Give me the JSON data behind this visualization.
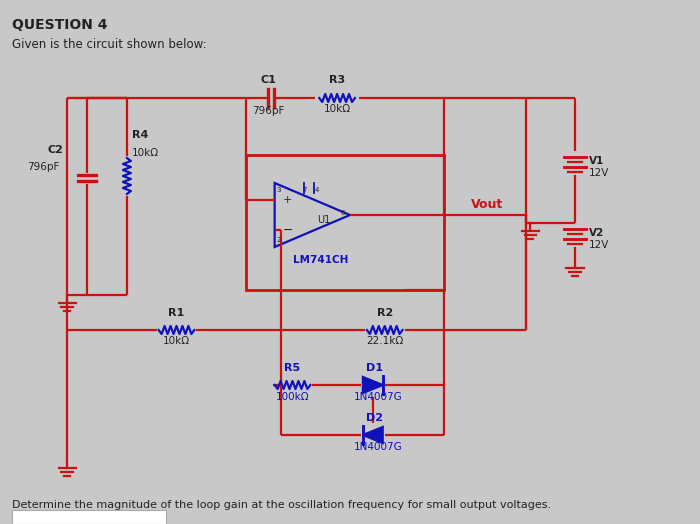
{
  "title": "QUESTION 4",
  "subtitle": "Given is the circuit shown below:",
  "footer": "Determine the magnitude of the loop gain at the oscillation frequency for small output voltages.",
  "bg_color": "#c8c8c8",
  "paper_color": "#f0f0f0",
  "circuit_color": "#cc1111",
  "blue_color": "#1111bb",
  "text_color": "#111111",
  "dark_text": "#222222"
}
